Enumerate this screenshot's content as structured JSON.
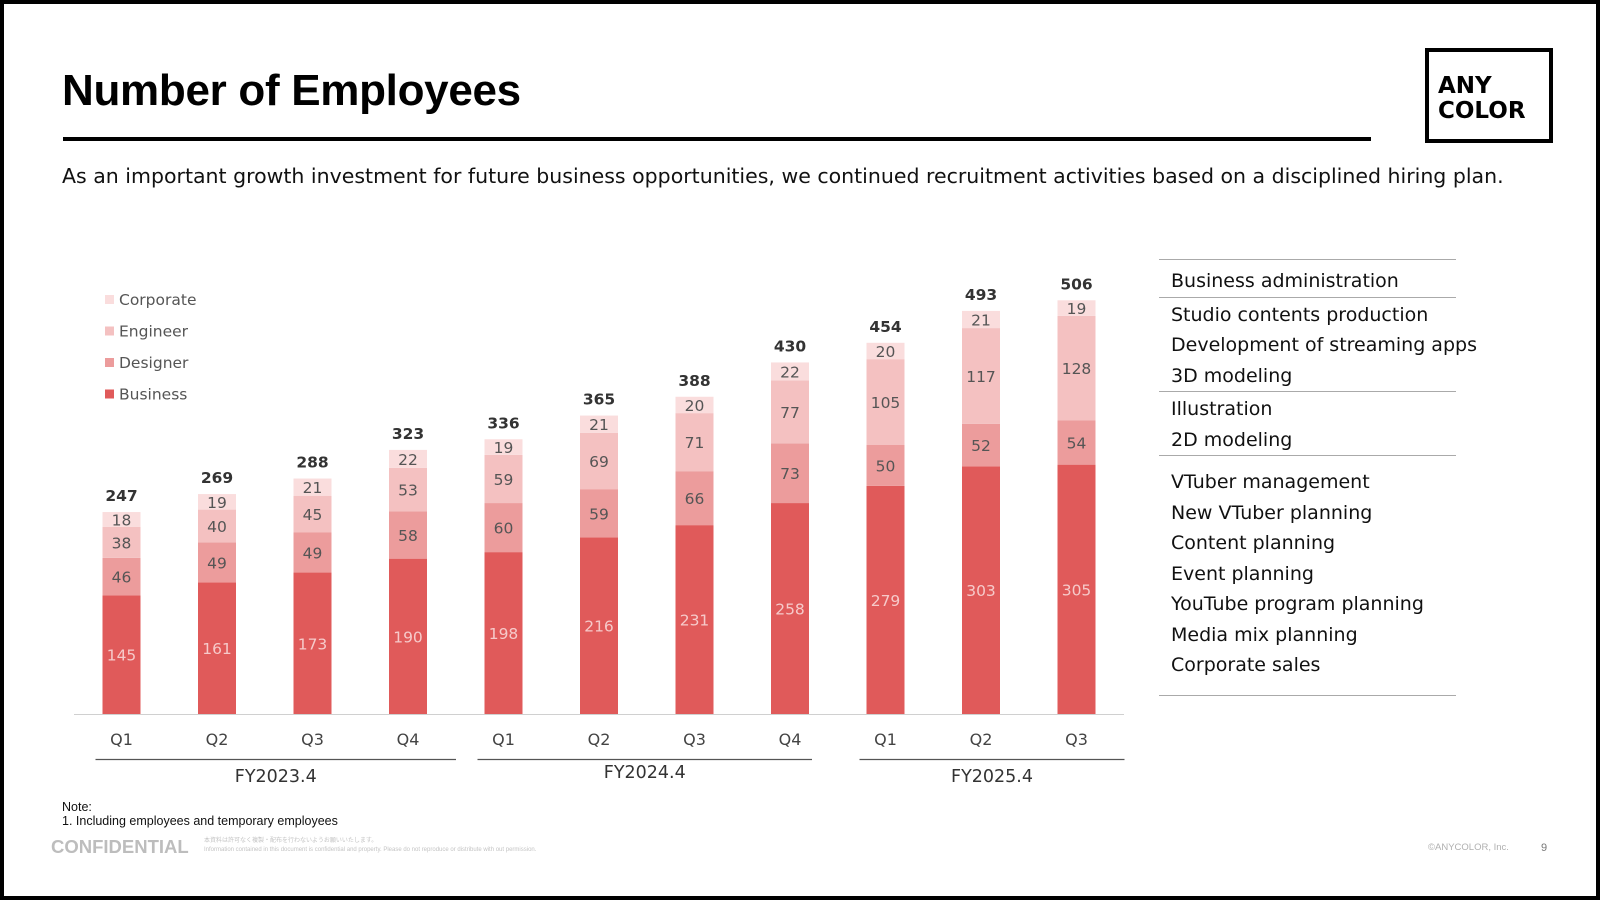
{
  "header": {
    "title": "Number of Employees",
    "subtitle": "As an important growth investment for future business opportunities, we continued recruitment activities based on a disciplined hiring plan.",
    "logo_line1": "ANY",
    "logo_line2": "COLOR"
  },
  "chart_data": {
    "type": "bar",
    "stacked": true,
    "categories": [
      "Q1",
      "Q2",
      "Q3",
      "Q4",
      "Q1",
      "Q2",
      "Q3",
      "Q4",
      "Q1",
      "Q2",
      "Q3"
    ],
    "groups": [
      {
        "label": "FY2023.4",
        "count": 4
      },
      {
        "label": "FY2024.4",
        "count": 4
      },
      {
        "label": "FY2025.4",
        "count": 3
      }
    ],
    "series": [
      {
        "name": "Business",
        "color": "#e05a5a",
        "values": [
          145,
          161,
          173,
          190,
          198,
          216,
          231,
          258,
          279,
          303,
          305
        ]
      },
      {
        "name": "Designer",
        "color": "#ec9c9c",
        "values": [
          46,
          49,
          49,
          58,
          60,
          59,
          66,
          73,
          50,
          52,
          54
        ]
      },
      {
        "name": "Engineer",
        "color": "#f4c1c1",
        "values": [
          38,
          40,
          45,
          53,
          59,
          69,
          71,
          77,
          105,
          117,
          128
        ]
      },
      {
        "name": "Corporate",
        "color": "#fadddd",
        "values": [
          18,
          19,
          21,
          22,
          19,
          21,
          20,
          22,
          20,
          21,
          19
        ]
      }
    ],
    "totals": [
      247,
      269,
      288,
      323,
      336,
      365,
      388,
      430,
      454,
      493,
      506
    ],
    "legend_order": [
      "Corporate",
      "Engineer",
      "Designer",
      "Business"
    ],
    "legend_position": "top-left",
    "ylim": [
      0,
      520
    ],
    "grid": false
  },
  "side_panel": {
    "groups": [
      {
        "items": [
          "Business administration"
        ]
      },
      {
        "items": [
          "Studio contents production",
          "Development of streaming apps",
          "3D modeling"
        ]
      },
      {
        "items": [
          "Illustration",
          "2D modeling"
        ]
      },
      {
        "items": [
          "VTuber management",
          "New VTuber planning",
          "Content planning",
          "Event planning",
          "YouTube program planning",
          "Media mix planning",
          "Corporate sales"
        ]
      }
    ]
  },
  "footer": {
    "note_heading": "Note:",
    "note_line": "1. Including employees and temporary employees",
    "confidential": "CONFIDENTIAL",
    "fine_line1": "本資料は許可なく複製・配布を行わないようお願いいたします。",
    "fine_line2": "Information contained in this document is confidential and property. Please do not reproduce or distribute with out permission.",
    "copyright": "©ANYCOLOR, Inc.",
    "page": "9"
  }
}
